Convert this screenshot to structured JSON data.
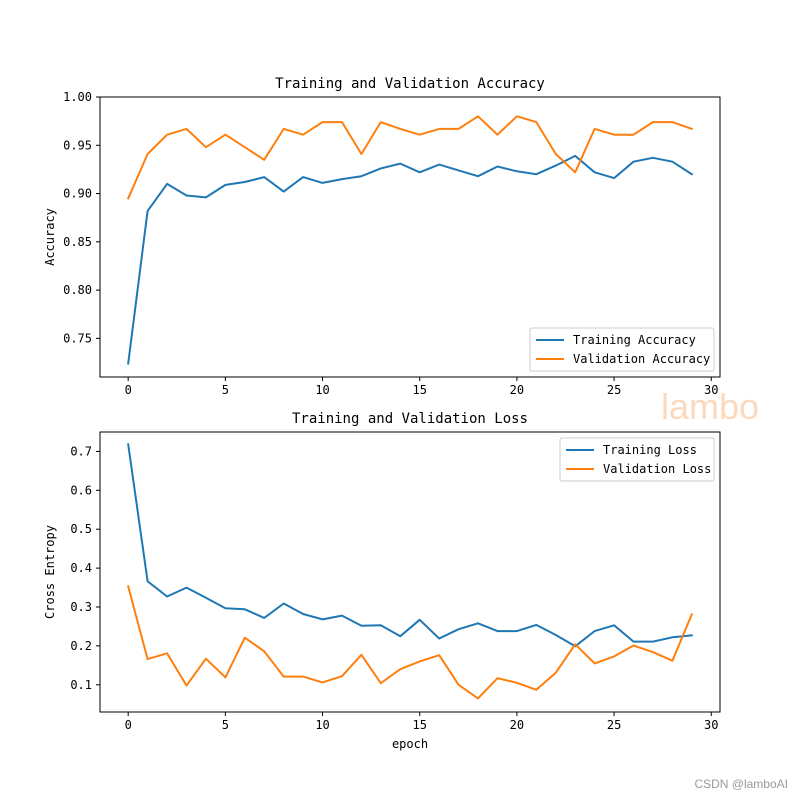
{
  "watermarks": {
    "main": "lambo",
    "corner": "CSDN @lamboAI"
  },
  "chart_data": [
    {
      "type": "line",
      "title": "Training and Validation Accuracy",
      "xlabel": "",
      "ylabel": "Accuracy",
      "xlim": [
        -1.45,
        30.45
      ],
      "ylim": [
        0.71,
        1.0
      ],
      "xticks": [
        0,
        5,
        10,
        15,
        20,
        25,
        30
      ],
      "yticks": [
        0.75,
        0.8,
        0.85,
        0.9,
        0.95,
        1.0
      ],
      "ytick_labels": [
        "0.75",
        "0.80",
        "0.85",
        "0.90",
        "0.95",
        "1.00"
      ],
      "legend_position": "lower-right",
      "x": [
        0,
        1,
        2,
        3,
        4,
        5,
        6,
        7,
        8,
        9,
        10,
        11,
        12,
        13,
        14,
        15,
        16,
        17,
        18,
        19,
        20,
        21,
        22,
        23,
        24,
        25,
        26,
        27,
        28,
        29
      ],
      "series": [
        {
          "name": "Training Accuracy",
          "color": "#1f77b4",
          "values": [
            0.724,
            0.882,
            0.91,
            0.898,
            0.896,
            0.909,
            0.912,
            0.917,
            0.902,
            0.917,
            0.911,
            0.915,
            0.918,
            0.926,
            0.931,
            0.922,
            0.93,
            0.924,
            0.918,
            0.928,
            0.923,
            0.92,
            0.929,
            0.939,
            0.922,
            0.916,
            0.933,
            0.937,
            0.933,
            0.92
          ]
        },
        {
          "name": "Validation Accuracy",
          "color": "#ff7f0e",
          "values": [
            0.895,
            0.941,
            0.961,
            0.967,
            0.948,
            0.961,
            0.948,
            0.935,
            0.967,
            0.961,
            0.974,
            0.974,
            0.941,
            0.974,
            0.967,
            0.961,
            0.967,
            0.967,
            0.98,
            0.961,
            0.98,
            0.974,
            0.941,
            0.922,
            0.967,
            0.961,
            0.961,
            0.974,
            0.974,
            0.967
          ]
        }
      ]
    },
    {
      "type": "line",
      "title": "Training and Validation Loss",
      "xlabel": "epoch",
      "ylabel": "Cross Entropy",
      "xlim": [
        -1.45,
        30.45
      ],
      "ylim": [
        0.03,
        0.75
      ],
      "xticks": [
        0,
        5,
        10,
        15,
        20,
        25,
        30
      ],
      "yticks": [
        0.1,
        0.2,
        0.3,
        0.4,
        0.5,
        0.6,
        0.7
      ],
      "ytick_labels": [
        "0.1",
        "0.2",
        "0.3",
        "0.4",
        "0.5",
        "0.6",
        "0.7"
      ],
      "legend_position": "upper-right",
      "x": [
        0,
        1,
        2,
        3,
        4,
        5,
        6,
        7,
        8,
        9,
        10,
        11,
        12,
        13,
        14,
        15,
        16,
        17,
        18,
        19,
        20,
        21,
        22,
        23,
        24,
        25,
        26,
        27,
        28,
        29
      ],
      "series": [
        {
          "name": "Training Loss",
          "color": "#1f77b4",
          "values": [
            0.718,
            0.366,
            0.327,
            0.35,
            0.324,
            0.297,
            0.294,
            0.272,
            0.309,
            0.282,
            0.268,
            0.278,
            0.252,
            0.253,
            0.225,
            0.267,
            0.219,
            0.243,
            0.258,
            0.238,
            0.238,
            0.254,
            0.228,
            0.199,
            0.238,
            0.253,
            0.211,
            0.211,
            0.222,
            0.227
          ]
        },
        {
          "name": "Validation Loss",
          "color": "#ff7f0e",
          "values": [
            0.353,
            0.166,
            0.181,
            0.098,
            0.167,
            0.119,
            0.221,
            0.186,
            0.121,
            0.121,
            0.106,
            0.122,
            0.177,
            0.104,
            0.14,
            0.16,
            0.176,
            0.1,
            0.065,
            0.117,
            0.105,
            0.087,
            0.131,
            0.204,
            0.155,
            0.173,
            0.201,
            0.184,
            0.162,
            0.281
          ]
        }
      ]
    }
  ]
}
